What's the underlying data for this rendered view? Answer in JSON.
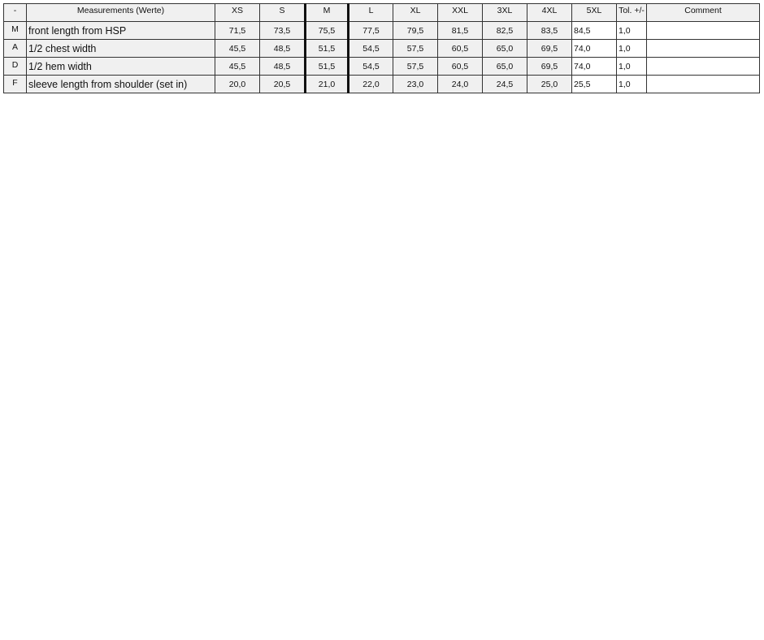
{
  "table": {
    "headers": [
      "-",
      "Measurements (Werte)",
      "XS",
      "S",
      "M",
      "L",
      "XL",
      "XXL",
      "3XL",
      "4XL",
      "5XL",
      "Tol. +/-",
      "Comment"
    ],
    "rows": [
      {
        "key": "M",
        "name": "front length from HSP",
        "values": [
          "71,5",
          "73,5",
          "75,5",
          "77,5",
          "79,5",
          "81,5",
          "82,5",
          "83,5",
          "84,5"
        ],
        "tol": "1,0",
        "comment": ""
      },
      {
        "key": "A",
        "name": "1/2 chest width",
        "values": [
          "45,5",
          "48,5",
          "51,5",
          "54,5",
          "57,5",
          "60,5",
          "65,0",
          "69,5",
          "74,0"
        ],
        "tol": "1,0",
        "comment": ""
      },
      {
        "key": "D",
        "name": "1/2 hem width",
        "values": [
          "45,5",
          "48,5",
          "51,5",
          "54,5",
          "57,5",
          "60,5",
          "65,0",
          "69,5",
          "74,0"
        ],
        "tol": "1,0",
        "comment": ""
      },
      {
        "key": "F",
        "name": "sleeve length from shoulder (set in)",
        "values": [
          "20,0",
          "20,5",
          "21,0",
          "22,0",
          "23,0",
          "24,0",
          "24,5",
          "25,0",
          "25,5"
        ],
        "tol": "1,0",
        "comment": ""
      }
    ]
  }
}
